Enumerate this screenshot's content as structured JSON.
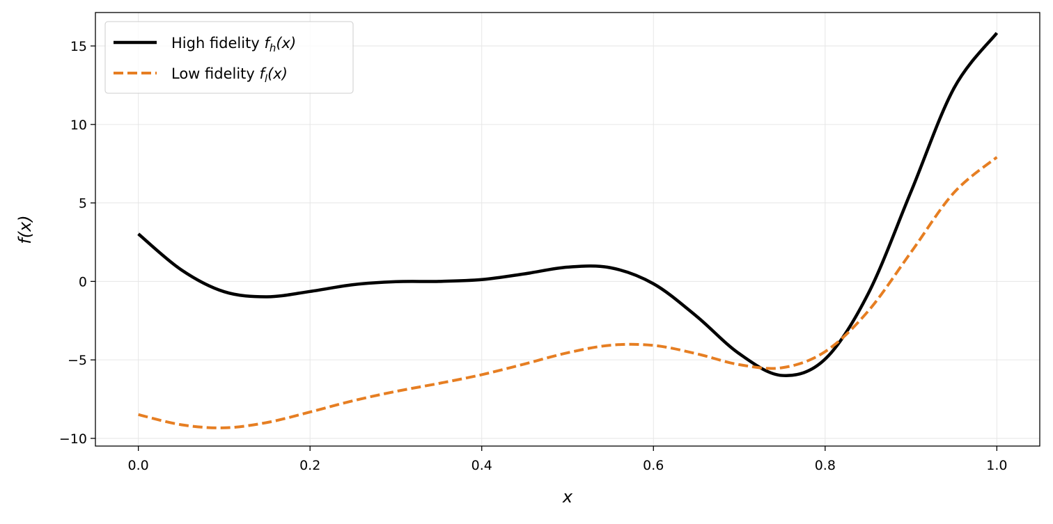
{
  "chart_data": {
    "type": "line",
    "title": "",
    "xlabel": "x",
    "ylabel": "f(x)",
    "xlim": [
      -0.05,
      1.05
    ],
    "ylim": [
      -10.49,
      17.13
    ],
    "xticks": [
      0.0,
      0.2,
      0.4,
      0.6,
      0.8,
      1.0
    ],
    "xtick_labels": [
      "0.0",
      "0.2",
      "0.4",
      "0.6",
      "0.8",
      "1.0"
    ],
    "yticks": [
      -10,
      -5,
      0,
      5,
      10,
      15
    ],
    "ytick_labels": [
      "−10",
      "−5",
      "0",
      "5",
      "10",
      "15"
    ],
    "grid": true,
    "legend_placement": "top-left",
    "x": [
      0,
      0.05,
      0.1,
      0.15,
      0.2,
      0.25,
      0.3,
      0.35,
      0.4,
      0.45,
      0.5,
      0.55,
      0.6,
      0.65,
      0.7,
      0.75,
      0.8,
      0.85,
      0.9,
      0.95,
      1.0
    ],
    "series": [
      {
        "name": "High fidelity f_h(x)",
        "legend_main": "High fidelity ",
        "legend_sym": "f",
        "legend_sub": "h",
        "legend_tail": "(x)",
        "color": "#000000",
        "style": "solid",
        "values": [
          3.027,
          0.738,
          -0.657,
          -0.978,
          -0.64,
          -0.21,
          -0.016,
          0.002,
          0.115,
          0.483,
          0.909,
          0.871,
          -0.149,
          -2.209,
          -4.606,
          -5.993,
          -4.95,
          -0.799,
          5.712,
          12.303,
          15.83
        ]
      },
      {
        "name": "Low fidelity f_l(x)",
        "legend_main": "Low fidelity ",
        "legend_sym": "f",
        "legend_sub": "l",
        "legend_tail": "(x)",
        "color": "#e67e22",
        "style": "dashed",
        "values": [
          -8.487,
          -9.131,
          -9.328,
          -8.989,
          -8.32,
          -7.605,
          -7.008,
          -6.499,
          -5.943,
          -5.259,
          -4.546,
          -4.065,
          -4.075,
          -4.605,
          -5.303,
          -5.497,
          -4.475,
          -1.9,
          1.856,
          5.652,
          7.915
        ]
      }
    ]
  }
}
